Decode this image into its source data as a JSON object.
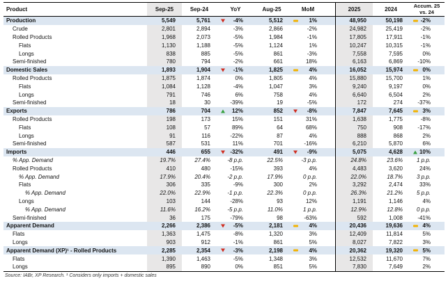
{
  "colors": {
    "section_row_bg": "#dce6f1",
    "shaded_column_bg": "#e8e7e7",
    "icon_down": "#cf2e21",
    "icon_up": "#36a03f",
    "icon_neutral": "#f2b200"
  },
  "chart_data": {
    "type": "table",
    "columns": [
      "Product",
      "Sep-25",
      "Sep-24",
      "YoY",
      "Aug-25",
      "MoM",
      "2025",
      "2024",
      "Accum. 25\nvs. 24"
    ],
    "rows": [
      {
        "label": "Production",
        "level": 0,
        "section": true,
        "values": [
          "5,549",
          "5,761",
          "-4%",
          "5,512",
          "1%",
          "48,950",
          "50,198",
          "-2%"
        ],
        "icons": {
          "yoy": "down",
          "mom": "dash",
          "accum": "dash"
        }
      },
      {
        "label": "Crude",
        "level": 1,
        "values": [
          "2,801",
          "2,894",
          "-3%",
          "2,866",
          "-2%",
          "24,982",
          "25,419",
          "-2%"
        ]
      },
      {
        "label": "Rolled Products",
        "level": 1,
        "values": [
          "1,968",
          "2,073",
          "-5%",
          "1,984",
          "-1%",
          "17,805",
          "17,911",
          "-1%"
        ]
      },
      {
        "label": "Flats",
        "level": 2,
        "values": [
          "1,130",
          "1,188",
          "-5%",
          "1,124",
          "1%",
          "10,247",
          "10,315",
          "-1%"
        ]
      },
      {
        "label": "Longs",
        "level": 2,
        "values": [
          "838",
          "885",
          "-5%",
          "861",
          "-3%",
          "7,558",
          "7,595",
          "0%"
        ]
      },
      {
        "label": "Semi-finished",
        "level": 1,
        "values": [
          "780",
          "794",
          "-2%",
          "661",
          "18%",
          "6,163",
          "6,869",
          "-10%"
        ]
      },
      {
        "label": "Domestic Sales",
        "level": 0,
        "section": true,
        "values": [
          "1,893",
          "1,904",
          "-1%",
          "1,825",
          "4%",
          "16,052",
          "15,974",
          "0%"
        ],
        "icons": {
          "yoy": "down",
          "mom": "dash",
          "accum": "dash"
        }
      },
      {
        "label": "Rolled Products",
        "level": 1,
        "values": [
          "1,875",
          "1,874",
          "0%",
          "1,805",
          "4%",
          "15,880",
          "15,700",
          "1%"
        ]
      },
      {
        "label": "Flats",
        "level": 2,
        "values": [
          "1,084",
          "1,128",
          "-4%",
          "1,047",
          "3%",
          "9,240",
          "9,197",
          "0%"
        ]
      },
      {
        "label": "Longs",
        "level": 2,
        "values": [
          "791",
          "746",
          "6%",
          "758",
          "4%",
          "6,640",
          "6,504",
          "2%"
        ]
      },
      {
        "label": "Semi-finished",
        "level": 1,
        "values": [
          "18",
          "30",
          "-39%",
          "19",
          "-5%",
          "172",
          "274",
          "-37%"
        ]
      },
      {
        "label": "Exports",
        "level": 0,
        "section": true,
        "values": [
          "786",
          "704",
          "12%",
          "852",
          "-8%",
          "7,847",
          "7,645",
          "3%"
        ],
        "icons": {
          "yoy": "up",
          "mom": "down",
          "accum": "dash"
        }
      },
      {
        "label": "Rolled Products",
        "level": 1,
        "values": [
          "198",
          "173",
          "15%",
          "151",
          "31%",
          "1,638",
          "1,775",
          "-8%"
        ]
      },
      {
        "label": "Flats",
        "level": 2,
        "values": [
          "108",
          "57",
          "89%",
          "64",
          "68%",
          "750",
          "908",
          "-17%"
        ]
      },
      {
        "label": "Longs",
        "level": 2,
        "values": [
          "91",
          "116",
          "-22%",
          "87",
          "4%",
          "888",
          "868",
          "2%"
        ]
      },
      {
        "label": "Semi-finished",
        "level": 1,
        "values": [
          "587",
          "531",
          "11%",
          "701",
          "-16%",
          "6,210",
          "5,870",
          "6%"
        ]
      },
      {
        "label": "Imports",
        "level": 0,
        "section": true,
        "values": [
          "446",
          "655",
          "-32%",
          "491",
          "-9%",
          "5,075",
          "4,628",
          "10%"
        ],
        "icons": {
          "yoy": "down",
          "mom": "down",
          "accum": "up"
        }
      },
      {
        "label": "% App. Demand",
        "level": 1,
        "italic": true,
        "values": [
          "19.7%",
          "27.4%",
          "-8 p.p.",
          "22.5%",
          "-3 p.p.",
          "24.8%",
          "23.6%",
          "1 p.p."
        ]
      },
      {
        "label": "Rolled Products",
        "level": 1,
        "values": [
          "410",
          "480",
          "-15%",
          "393",
          "4%",
          "4,483",
          "3,620",
          "24%"
        ]
      },
      {
        "label": "% App. Demand",
        "level": 2,
        "italic": true,
        "values": [
          "17.9%",
          "20.4%",
          "-2 p.p.",
          "17.9%",
          "0 p.p.",
          "22.0%",
          "18.7%",
          "3 p.p."
        ]
      },
      {
        "label": "Flats",
        "level": 2,
        "values": [
          "306",
          "335",
          "-9%",
          "300",
          "2%",
          "3,292",
          "2,474",
          "33%"
        ]
      },
      {
        "label": "% App. Demand",
        "level": 3,
        "italic": true,
        "values": [
          "22.0%",
          "22.9%",
          "-1 p.p.",
          "22.3%",
          "0 p.p.",
          "26.3%",
          "21.2%",
          "5 p.p."
        ]
      },
      {
        "label": "Longs",
        "level": 2,
        "values": [
          "103",
          "144",
          "-28%",
          "93",
          "12%",
          "1,191",
          "1,146",
          "4%"
        ]
      },
      {
        "label": "% App. Demand",
        "level": 3,
        "italic": true,
        "values": [
          "11.6%",
          "16.2%",
          "-5 p.p.",
          "11.0%",
          "1 p.p.",
          "12.9%",
          "12.8%",
          "0 p.p."
        ]
      },
      {
        "label": "Semi-finished",
        "level": 1,
        "values": [
          "36",
          "175",
          "-79%",
          "98",
          "-63%",
          "592",
          "1,008",
          "-41%"
        ]
      },
      {
        "label": "Apparent Demand",
        "level": 0,
        "section": true,
        "values": [
          "2,266",
          "2,386",
          "-5%",
          "2,181",
          "4%",
          "20,436",
          "19,636",
          "4%"
        ],
        "icons": {
          "yoy": "down",
          "mom": "dash",
          "accum": "dash"
        }
      },
      {
        "label": "Flats",
        "level": 1,
        "values": [
          "1,363",
          "1,475",
          "-8%",
          "1,320",
          "3%",
          "12,409",
          "11,814",
          "5%"
        ]
      },
      {
        "label": "Longs",
        "level": 1,
        "values": [
          "903",
          "912",
          "-1%",
          "861",
          "5%",
          "8,027",
          "7,822",
          "3%"
        ]
      },
      {
        "label": "Apparent Demand (XP)¹ - Rolled Products",
        "level": 0,
        "section": true,
        "values": [
          "2,285",
          "2,354",
          "-3%",
          "2,198",
          "4%",
          "20,362",
          "19,320",
          "5%"
        ],
        "icons": {
          "yoy": "down",
          "mom": "dash",
          "accum": "dash"
        }
      },
      {
        "label": "Flats",
        "level": 1,
        "values": [
          "1,390",
          "1,463",
          "-5%",
          "1,348",
          "3%",
          "12,532",
          "11,670",
          "7%"
        ]
      },
      {
        "label": "Longs",
        "level": 1,
        "values": [
          "895",
          "890",
          "0%",
          "851",
          "5%",
          "7,830",
          "7,649",
          "2%"
        ]
      }
    ],
    "footnote": "Source: IABr, XP Research. ¹ Considers only imports + domestic sales"
  }
}
